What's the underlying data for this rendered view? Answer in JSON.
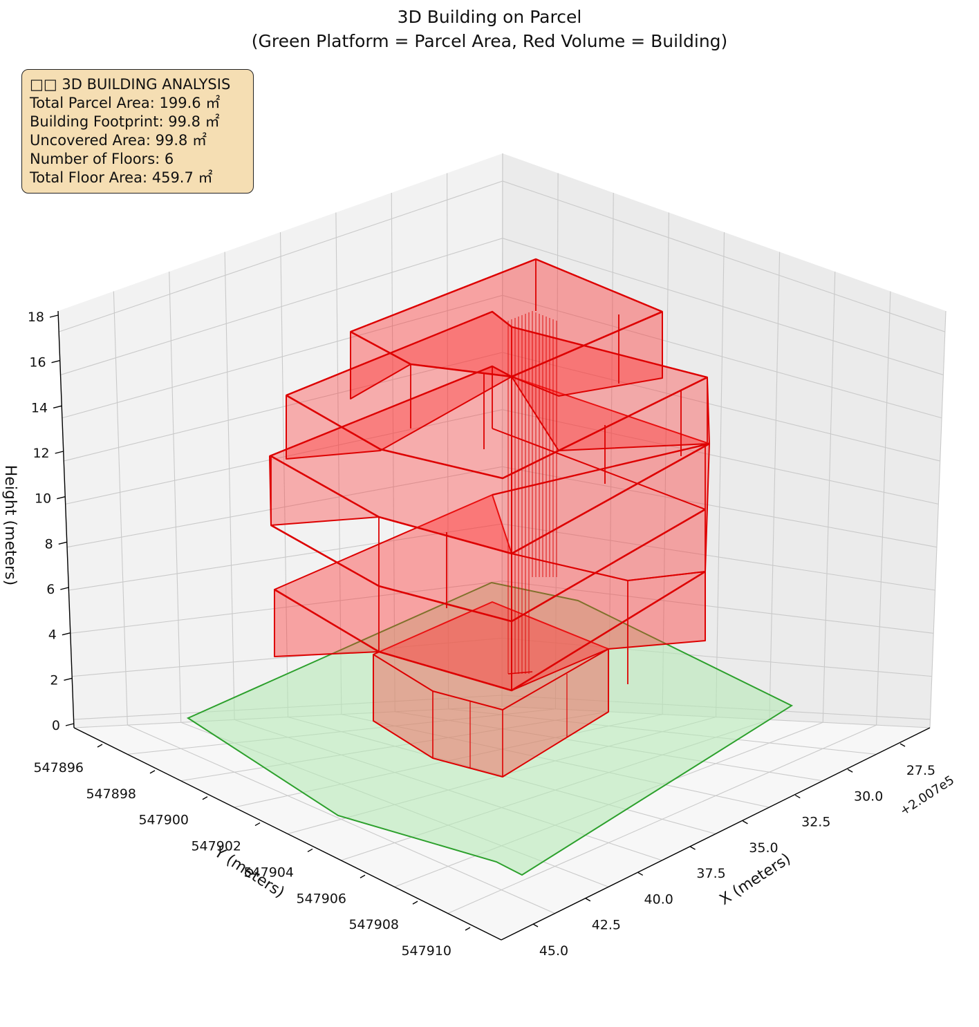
{
  "chart_data": {
    "type": "3d-polygons",
    "title": "3D Building on Parcel",
    "subtitle": "(Green Platform = Parcel Area, Red Volume = Building)",
    "xlabel": "X (meters)",
    "ylabel": "Y (meters)",
    "zlabel": "Height (meters)",
    "x_offset_label": "+2.007e5",
    "x_ticks": [
      "27.5",
      "30.0",
      "32.5",
      "35.0",
      "37.5",
      "40.0",
      "42.5",
      "45.0"
    ],
    "y_ticks": [
      "547896",
      "547898",
      "547900",
      "547902",
      "547904",
      "547906",
      "547908",
      "547910"
    ],
    "z_ticks": [
      "0",
      "2",
      "4",
      "6",
      "8",
      "10",
      "12",
      "14",
      "16",
      "18"
    ],
    "grid": true,
    "colors": {
      "parcel_edge": "#2ca02c",
      "parcel_fill": "#b7eab7",
      "building_edge": "#dd0000",
      "building_fill": "#ff2b2b",
      "info_box_fill": "#f5deb3"
    },
    "info_box": {
      "lines": [
        "□□ 3D BUILDING ANALYSIS",
        "Total Parcel Area: 199.6 ㎡",
        "Building Footprint: 99.8 ㎡",
        "Uncovered Area: 99.8 ㎡",
        "Number of Floors: 6",
        "Total Floor Area: 459.7 ㎡"
      ]
    },
    "metrics": {
      "total_parcel_area_m2": 199.6,
      "building_footprint_m2": 99.8,
      "uncovered_area_m2": 99.8,
      "number_of_floors": 6,
      "total_floor_area_m2": 459.7
    }
  }
}
